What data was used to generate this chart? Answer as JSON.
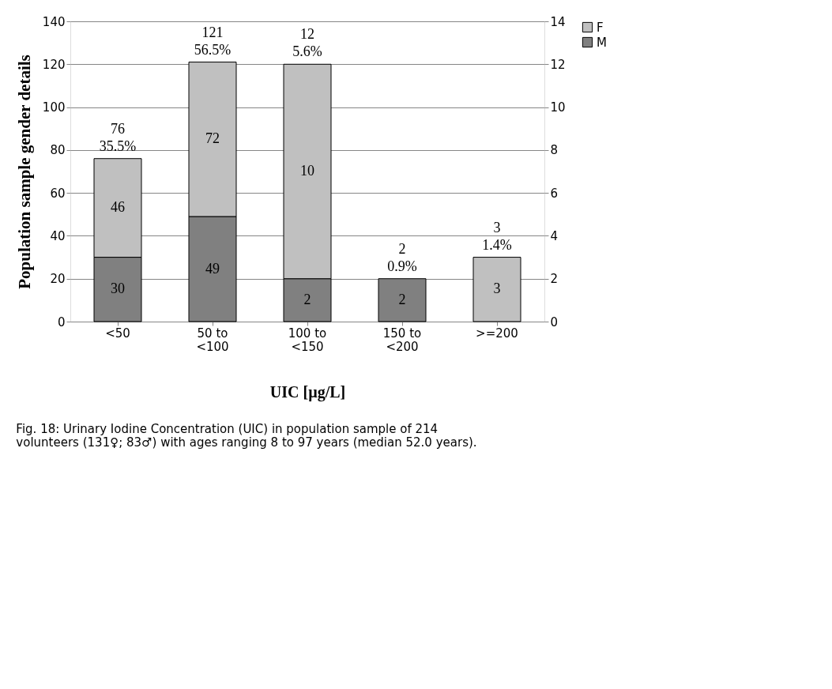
{
  "chart_data": {
    "type": "bar",
    "stacked": true,
    "categories": [
      "<50",
      "50 to <100",
      "100 to <150",
      "150 to <200",
      ">=200"
    ],
    "xlabel": "UIC [µg/L]",
    "ylabel": "Population sample gender details",
    "series": [
      {
        "name": "M",
        "color": "#808080",
        "values": [
          30,
          49,
          null,
          null,
          null
        ]
      },
      {
        "name": "F",
        "color": "#c0c0c0",
        "values": [
          46,
          72,
          null,
          null,
          null
        ]
      },
      {
        "color": "#808080",
        "axis": "y2",
        "values": [
          null,
          null,
          2,
          2,
          null
        ]
      },
      {
        "color": "#c0c0c0",
        "axis": "y2",
        "values": [
          null,
          null,
          10,
          null,
          3
        ]
      }
    ],
    "totals": [
      "76\n35.5%",
      "121\n56.5%",
      "12\n5.6%",
      "2\n0.9%",
      "3\n1.4%"
    ],
    "ylim": [
      0,
      140
    ],
    "yticks": [
      0,
      20,
      40,
      60,
      80,
      100,
      120,
      140
    ],
    "y2lim": [
      0,
      14
    ],
    "y2ticks": [
      0,
      2,
      4,
      6,
      8,
      10,
      12,
      14
    ],
    "grid": "y",
    "legend": "right",
    "data_labels": true,
    "annotations": [
      "Fig. 18: Urinary Iodine Concentration (UIC) in population sample of 214 volunteers (131♀; 83♂) with ages ranging 8 to 97 years (median 52.0 years)."
    ]
  }
}
